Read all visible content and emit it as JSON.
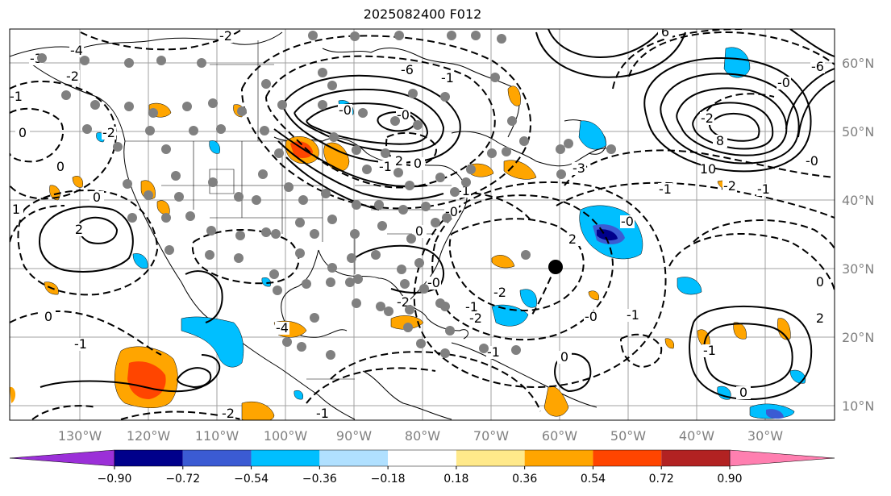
{
  "title": "2025082400 F012",
  "map": {
    "lon_labels": [
      "130°W",
      "120°W",
      "110°W",
      "100°W",
      "90°W",
      "80°W",
      "70°W",
      "60°W",
      "50°W",
      "40°W",
      "30°W"
    ],
    "lat_labels": [
      "60°N",
      "50°N",
      "40°N",
      "30°N",
      "20°N",
      "10°N"
    ],
    "contour_labels": [
      "-3",
      "-4",
      "-2",
      "-1",
      "0",
      "1",
      "2",
      "-2",
      "0",
      "-6",
      "-0",
      "-1",
      "-0",
      "0",
      "-1",
      "-0",
      "-1",
      "-3",
      "-1",
      "-0",
      "-0",
      "0",
      "-2",
      "2",
      "-1",
      "-2",
      "-0",
      "-1",
      "0",
      "-1",
      "-1",
      "0",
      "-1",
      "-2",
      "-4",
      "-2",
      "0",
      "2",
      "-2",
      "6",
      "-6",
      "-0",
      "10",
      "8",
      "-2",
      "-1",
      "-0",
      "-2",
      "-1",
      "0",
      "2",
      "0"
    ]
  },
  "colorbar": {
    "colors": [
      "#9b30d8",
      "#00008b",
      "#3b5bd3",
      "#00bfff",
      "#b0e0ff",
      "#ffffff",
      "#ffe98a",
      "#ffa500",
      "#ff4500",
      "#b22222",
      "#ff7fb0"
    ],
    "tick_labels": [
      "−0.90",
      "−0.72",
      "−0.54",
      "−0.36",
      "−0.18",
      "0.18",
      "0.36",
      "0.54",
      "0.72",
      "0.90"
    ]
  }
}
